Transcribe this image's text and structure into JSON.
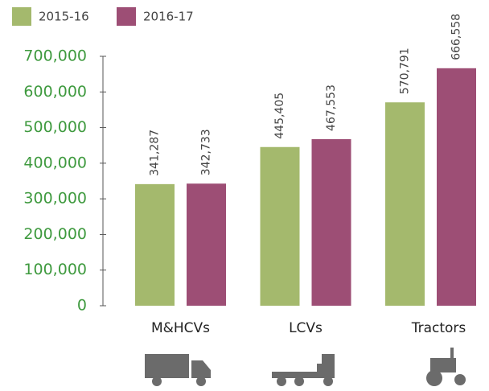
{
  "chart_data": {
    "type": "bar",
    "categories": [
      "M&HCVs",
      "LCVs",
      "Tractors"
    ],
    "series": [
      {
        "name": "2015-16",
        "color": "#a4b96d",
        "values": [
          341287,
          445405,
          570791
        ],
        "value_labels": [
          "341,287",
          "445,405",
          "570,791"
        ]
      },
      {
        "name": "2016-17",
        "color": "#9d4e75",
        "values": [
          342733,
          467553,
          666558
        ],
        "value_labels": [
          "342,733",
          "467,553",
          "666,558"
        ]
      }
    ],
    "ylim": [
      0,
      700000
    ],
    "yticks": [
      0,
      {
        "value": 100000,
        "label": "100,000"
      },
      {
        "value": 200000,
        "label": "200,000"
      },
      {
        "value": 300000,
        "label": "300,000"
      },
      {
        "value": 400000,
        "label": "400,000"
      },
      {
        "value": 500000,
        "label": "500,000"
      },
      {
        "value": 600000,
        "label": "600,000"
      },
      {
        "value": 700000,
        "label": "700,000"
      }
    ],
    "legend": "top-left"
  }
}
